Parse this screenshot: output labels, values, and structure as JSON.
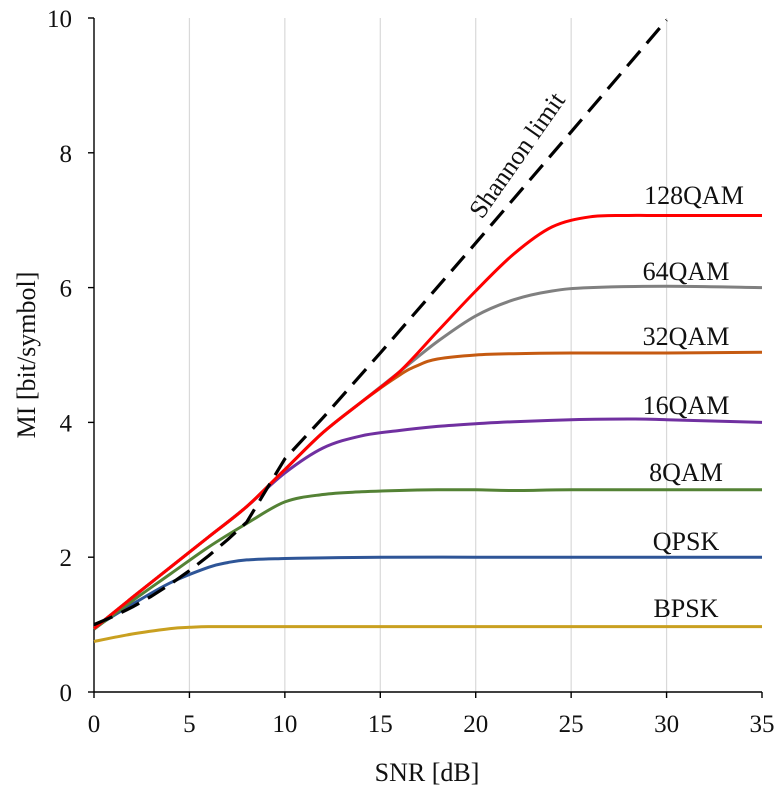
{
  "chart_data": {
    "type": "line",
    "title": "",
    "xlabel": "SNR [dB]",
    "ylabel": "MI [bit/symbol]",
    "xlim": [
      0,
      35
    ],
    "ylim": [
      0,
      10
    ],
    "xticks": [
      "0",
      "5",
      "10",
      "15",
      "20",
      "25",
      "30",
      "35"
    ],
    "yticks": [
      "0",
      "2",
      "4",
      "6",
      "8",
      "10"
    ],
    "grid": "vertical gridlines",
    "series": [
      {
        "name": "BPSK",
        "color": "#C9A020",
        "dashed": false,
        "x": [
          0,
          2,
          4,
          5,
          6,
          8,
          10,
          15,
          20,
          25,
          30,
          35
        ],
        "y": [
          0.75,
          0.86,
          0.94,
          0.96,
          0.97,
          0.97,
          0.97,
          0.97,
          0.97,
          0.97,
          0.97,
          0.97
        ]
      },
      {
        "name": "QPSK",
        "color": "#2E5597",
        "dashed": false,
        "x": [
          0,
          2,
          4,
          6,
          7,
          8,
          10,
          12,
          15,
          20,
          25,
          30,
          35
        ],
        "y": [
          0.95,
          1.3,
          1.62,
          1.85,
          1.92,
          1.96,
          1.98,
          1.99,
          2.0,
          2.0,
          2.0,
          2.0,
          2.0
        ]
      },
      {
        "name": "8QAM",
        "color": "#548235",
        "dashed": false,
        "x": [
          0,
          2,
          4,
          6,
          8,
          10,
          12,
          14,
          16,
          18,
          20,
          22,
          25,
          30,
          35
        ],
        "y": [
          0.93,
          1.35,
          1.75,
          2.15,
          2.5,
          2.82,
          2.93,
          2.97,
          2.99,
          3.0,
          3.0,
          2.99,
          3.0,
          3.0,
          3.0
        ]
      },
      {
        "name": "16QAM",
        "color": "#7030A0",
        "dashed": false,
        "x": [
          0,
          2,
          4,
          6,
          8,
          10,
          12,
          14,
          16,
          18,
          20,
          22,
          25,
          28,
          30,
          35
        ],
        "y": [
          0.94,
          1.4,
          1.85,
          2.3,
          2.75,
          3.25,
          3.62,
          3.8,
          3.88,
          3.94,
          3.98,
          4.01,
          4.04,
          4.05,
          4.04,
          4.0
        ]
      },
      {
        "name": "32QAM",
        "color": "#C55A11",
        "dashed": false,
        "x": [
          0,
          2,
          4,
          6,
          8,
          10,
          12,
          14,
          16,
          17,
          18,
          20,
          22,
          25,
          30,
          35
        ],
        "y": [
          0.94,
          1.4,
          1.85,
          2.3,
          2.75,
          3.3,
          3.85,
          4.3,
          4.7,
          4.85,
          4.94,
          5.0,
          5.02,
          5.03,
          5.03,
          5.04
        ]
      },
      {
        "name": "64QAM",
        "color": "#808080",
        "dashed": false,
        "x": [
          0,
          2,
          4,
          6,
          8,
          10,
          12,
          14,
          16,
          18,
          20,
          22,
          24,
          26,
          30,
          35
        ],
        "y": [
          0.94,
          1.4,
          1.85,
          2.3,
          2.75,
          3.3,
          3.85,
          4.3,
          4.75,
          5.2,
          5.58,
          5.82,
          5.95,
          6.0,
          6.02,
          6.0
        ]
      },
      {
        "name": "128QAM",
        "color": "#FF0000",
        "dashed": false,
        "x": [
          0,
          2,
          4,
          6,
          8,
          10,
          12,
          14,
          16,
          18,
          20,
          22,
          24,
          26,
          28,
          30,
          35
        ],
        "y": [
          0.94,
          1.4,
          1.85,
          2.3,
          2.75,
          3.3,
          3.85,
          4.3,
          4.75,
          5.35,
          5.95,
          6.5,
          6.9,
          7.05,
          7.07,
          7.07,
          7.07
        ]
      },
      {
        "name": "Shannon limit",
        "color": "#000000",
        "dashed": true,
        "x": [
          0,
          1,
          2,
          3,
          4,
          5,
          6,
          7,
          8,
          10,
          12,
          15,
          20,
          25,
          30
        ],
        "y": [
          1.0,
          1.12,
          1.26,
          1.42,
          1.6,
          1.8,
          2.02,
          2.26,
          2.52,
          3.46,
          4.07,
          5.03,
          6.66,
          8.31,
          9.97
        ]
      }
    ]
  }
}
